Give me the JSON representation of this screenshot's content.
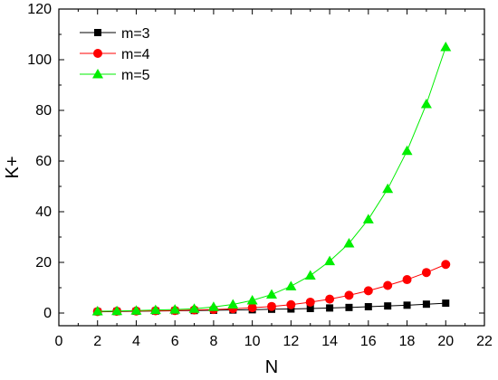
{
  "chart_data": {
    "type": "line",
    "title": "",
    "xlabel": "N",
    "ylabel": "K+",
    "xlim": [
      0,
      22
    ],
    "ylim": [
      -5,
      120
    ],
    "xticks": [
      0,
      2,
      4,
      6,
      8,
      10,
      12,
      14,
      16,
      18,
      20,
      22
    ],
    "yticks": [
      0,
      20,
      40,
      60,
      80,
      100,
      120
    ],
    "grid": false,
    "legend_position": "top-left",
    "x": [
      2,
      3,
      4,
      5,
      6,
      7,
      8,
      9,
      10,
      11,
      12,
      13,
      14,
      15,
      16,
      17,
      18,
      19,
      20
    ],
    "series": [
      {
        "name": "m=3",
        "color": "#000000",
        "marker": "square",
        "values": [
          0.5,
          0.6,
          0.7,
          0.8,
          0.9,
          1.0,
          1.1,
          1.2,
          1.3,
          1.5,
          1.6,
          1.8,
          2.0,
          2.2,
          2.5,
          2.8,
          3.1,
          3.5,
          3.9
        ]
      },
      {
        "name": "m=4",
        "color": "#ff0000",
        "marker": "circle",
        "values": [
          0.6,
          0.7,
          0.8,
          0.9,
          1.0,
          1.2,
          1.4,
          1.7,
          2.1,
          2.6,
          3.3,
          4.3,
          5.5,
          7.0,
          8.8,
          10.9,
          13.2,
          16.0,
          19.2
        ]
      },
      {
        "name": "m=5",
        "color": "#00ee00",
        "marker": "triangle",
        "values": [
          0.7,
          0.8,
          1.0,
          1.2,
          1.4,
          1.7,
          2.4,
          3.4,
          5.0,
          7.3,
          10.6,
          14.8,
          20.5,
          27.5,
          37.0,
          49.0,
          64.0,
          82.5,
          105.0
        ]
      }
    ]
  }
}
